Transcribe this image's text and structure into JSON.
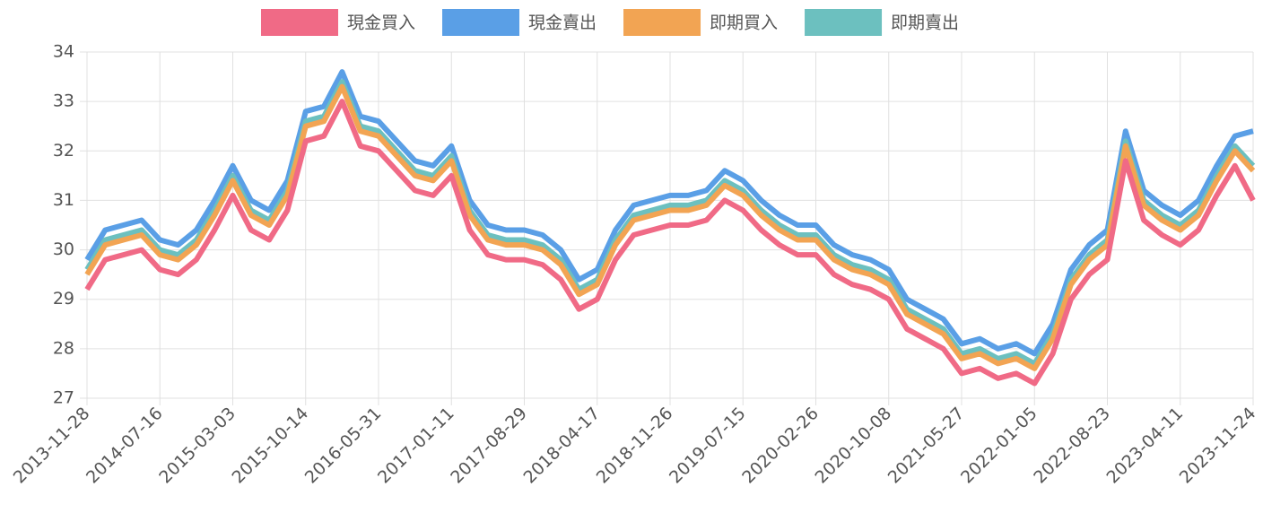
{
  "chart_data": {
    "type": "line",
    "categories": [
      "2013-11-28",
      null,
      null,
      null,
      "2014-07-16",
      null,
      null,
      null,
      "2015-03-03",
      null,
      null,
      null,
      "2015-10-14",
      null,
      null,
      null,
      "2016-05-31",
      null,
      null,
      null,
      "2017-01-11",
      null,
      null,
      null,
      "2017-08-29",
      null,
      null,
      null,
      "2018-04-17",
      null,
      null,
      null,
      "2018-11-26",
      null,
      null,
      null,
      "2019-07-15",
      null,
      null,
      null,
      "2020-02-26",
      null,
      null,
      null,
      "2020-10-08",
      null,
      null,
      null,
      "2021-05-27",
      null,
      null,
      null,
      "2022-01-05",
      null,
      null,
      null,
      "2022-08-23",
      null,
      null,
      null,
      "2023-04-11",
      null,
      null,
      null,
      "2023-11-24"
    ],
    "series": [
      {
        "name": "現金買入",
        "color": "#f06a86",
        "values": [
          29.2,
          29.8,
          29.9,
          30.0,
          29.6,
          29.5,
          29.8,
          30.4,
          31.1,
          30.4,
          30.2,
          30.8,
          32.2,
          32.3,
          33.0,
          32.1,
          32.0,
          31.6,
          31.2,
          31.1,
          31.5,
          30.4,
          29.9,
          29.8,
          29.8,
          29.7,
          29.4,
          28.8,
          29.0,
          29.8,
          30.3,
          30.4,
          30.5,
          30.5,
          30.6,
          31.0,
          30.8,
          30.4,
          30.1,
          29.9,
          29.9,
          29.5,
          29.3,
          29.2,
          29.0,
          28.4,
          28.2,
          28.0,
          27.5,
          27.6,
          27.4,
          27.5,
          27.3,
          27.9,
          29.0,
          29.5,
          29.8,
          31.8,
          30.6,
          30.3,
          30.1,
          30.4,
          31.1,
          31.7,
          31.0
        ]
      },
      {
        "name": "現金賣出",
        "color": "#5a9fe6",
        "values": [
          29.8,
          30.4,
          30.5,
          30.6,
          30.2,
          30.1,
          30.4,
          31.0,
          31.7,
          31.0,
          30.8,
          31.4,
          32.8,
          32.9,
          33.6,
          32.7,
          32.6,
          32.2,
          31.8,
          31.7,
          32.1,
          31.0,
          30.5,
          30.4,
          30.4,
          30.3,
          30.0,
          29.4,
          29.6,
          30.4,
          30.9,
          31.0,
          31.1,
          31.1,
          31.2,
          31.6,
          31.4,
          31.0,
          30.7,
          30.5,
          30.5,
          30.1,
          29.9,
          29.8,
          29.6,
          29.0,
          28.8,
          28.6,
          28.1,
          28.2,
          28.0,
          28.1,
          27.9,
          28.5,
          29.6,
          30.1,
          30.4,
          32.4,
          31.2,
          30.9,
          30.7,
          31.0,
          31.7,
          32.3,
          32.4
        ]
      },
      {
        "name": "即期買入",
        "color": "#f2a453",
        "values": [
          29.5,
          30.1,
          30.2,
          30.3,
          29.9,
          29.8,
          30.1,
          30.7,
          31.4,
          30.7,
          30.5,
          31.1,
          32.5,
          32.6,
          33.3,
          32.4,
          32.3,
          31.9,
          31.5,
          31.4,
          31.8,
          30.7,
          30.2,
          30.1,
          30.1,
          30.0,
          29.7,
          29.1,
          29.3,
          30.1,
          30.6,
          30.7,
          30.8,
          30.8,
          30.9,
          31.3,
          31.1,
          30.7,
          30.4,
          30.2,
          30.2,
          29.8,
          29.6,
          29.5,
          29.3,
          28.7,
          28.5,
          28.3,
          27.8,
          27.9,
          27.7,
          27.8,
          27.6,
          28.2,
          29.3,
          29.8,
          30.1,
          32.1,
          30.9,
          30.6,
          30.4,
          30.7,
          31.4,
          32.0,
          31.6
        ]
      },
      {
        "name": "即期賣出",
        "color": "#6cc0bf",
        "values": [
          29.6,
          30.2,
          30.3,
          30.4,
          30.0,
          29.9,
          30.2,
          30.8,
          31.5,
          30.8,
          30.6,
          31.2,
          32.6,
          32.7,
          33.4,
          32.5,
          32.4,
          32.0,
          31.6,
          31.5,
          31.9,
          30.8,
          30.3,
          30.2,
          30.2,
          30.1,
          29.8,
          29.2,
          29.4,
          30.2,
          30.7,
          30.8,
          30.9,
          30.9,
          31.0,
          31.4,
          31.2,
          30.8,
          30.5,
          30.3,
          30.3,
          29.9,
          29.7,
          29.6,
          29.4,
          28.8,
          28.6,
          28.4,
          27.9,
          28.0,
          27.8,
          27.9,
          27.7,
          28.3,
          29.4,
          29.9,
          30.2,
          32.2,
          31.0,
          30.7,
          30.5,
          30.8,
          31.5,
          32.1,
          31.7
        ]
      }
    ],
    "ylim": [
      27,
      34
    ],
    "yticks": [
      27,
      28,
      29,
      30,
      31,
      32,
      33,
      34
    ],
    "grid": true,
    "legend": "top"
  }
}
